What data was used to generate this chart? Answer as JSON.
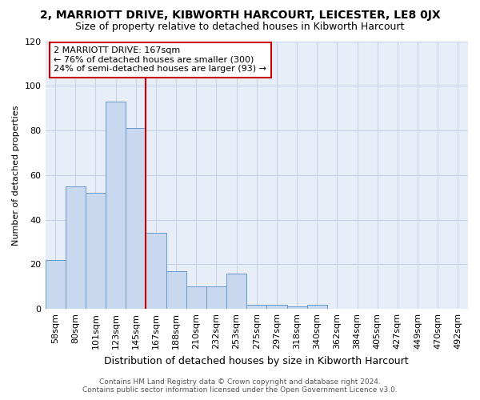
{
  "title1": "2, MARRIOTT DRIVE, KIBWORTH HARCOURT, LEICESTER, LE8 0JX",
  "title2": "Size of property relative to detached houses in Kibworth Harcourt",
  "xlabel": "Distribution of detached houses by size in Kibworth Harcourt",
  "ylabel": "Number of detached properties",
  "footer1": "Contains HM Land Registry data © Crown copyright and database right 2024.",
  "footer2": "Contains public sector information licensed under the Open Government Licence v3.0.",
  "bar_labels": [
    "58sqm",
    "80sqm",
    "101sqm",
    "123sqm",
    "145sqm",
    "167sqm",
    "188sqm",
    "210sqm",
    "232sqm",
    "253sqm",
    "275sqm",
    "297sqm",
    "318sqm",
    "340sqm",
    "362sqm",
    "384sqm",
    "405sqm",
    "427sqm",
    "449sqm",
    "470sqm",
    "492sqm"
  ],
  "bar_values": [
    22,
    55,
    52,
    93,
    81,
    34,
    17,
    10,
    10,
    16,
    2,
    2,
    1,
    2,
    0,
    0,
    0,
    0,
    0,
    0,
    0
  ],
  "bar_color": "#c8d8ee",
  "bar_edgecolor": "#6699cc",
  "property_line_idx": 5,
  "annotation_text": "2 MARRIOTT DRIVE: 167sqm\n← 76% of detached houses are smaller (300)\n24% of semi-detached houses are larger (93) →",
  "annotation_box_color": "#ffffff",
  "annotation_box_edgecolor": "#cc0000",
  "vline_color": "#cc0000",
  "grid_color": "#c8d4e8",
  "background_color": "#e8eef8",
  "ylim": [
    0,
    120
  ],
  "yticks": [
    0,
    20,
    40,
    60,
    80,
    100,
    120
  ],
  "title1_fontsize": 10,
  "title2_fontsize": 9,
  "xlabel_fontsize": 9,
  "ylabel_fontsize": 8,
  "tick_fontsize": 8,
  "footer_fontsize": 6.5
}
